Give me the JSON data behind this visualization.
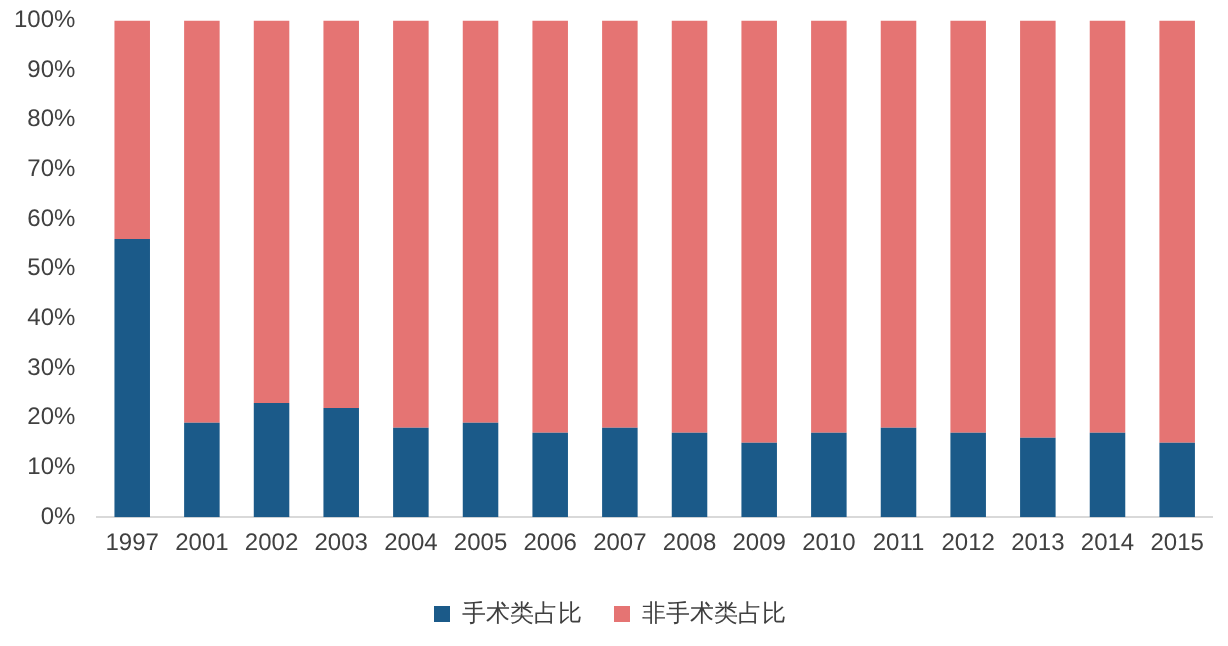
{
  "chart_data": {
    "type": "bar",
    "stacked": true,
    "legend": "bottom",
    "grid": false,
    "categories": [
      "1997",
      "2001",
      "2002",
      "2003",
      "2004",
      "2005",
      "2006",
      "2007",
      "2008",
      "2009",
      "2010",
      "2011",
      "2012",
      "2013",
      "2014",
      "2015"
    ],
    "ylim": [
      0,
      100
    ],
    "yticks": [
      {
        "value": 0,
        "label": "0%"
      },
      {
        "value": 10,
        "label": "10%"
      },
      {
        "value": 20,
        "label": "20%"
      },
      {
        "value": 30,
        "label": "30%"
      },
      {
        "value": 40,
        "label": "40%"
      },
      {
        "value": 50,
        "label": "50%"
      },
      {
        "value": 60,
        "label": "60%"
      },
      {
        "value": 70,
        "label": "70%"
      },
      {
        "value": 80,
        "label": "80%"
      },
      {
        "value": 90,
        "label": "90%"
      },
      {
        "value": 100,
        "label": "100%"
      }
    ],
    "series": [
      {
        "name": "手术类占比",
        "color": "#1b5a89",
        "values": [
          56,
          19,
          23,
          22,
          18,
          19,
          17,
          18,
          17,
          15,
          17,
          18,
          17,
          16,
          17,
          15
        ]
      },
      {
        "name": "非手术类占比",
        "color": "#e57473",
        "values": [
          44,
          81,
          77,
          78,
          82,
          81,
          83,
          82,
          83,
          85,
          83,
          82,
          83,
          84,
          83,
          85
        ]
      }
    ]
  }
}
